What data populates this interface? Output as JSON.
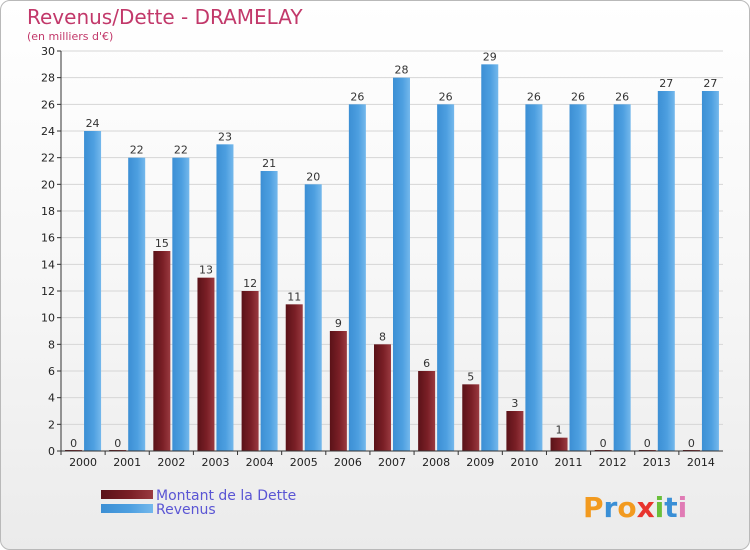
{
  "title": "Revenus/Dette - DRAMELAY",
  "subtitle": "(en milliers d'€)",
  "logo": {
    "letters": [
      "P",
      "r",
      "o",
      "x",
      "i",
      "t",
      "i"
    ],
    "colors": [
      "#f29a1f",
      "#3a8fd6",
      "#f29a1f",
      "#e8342e",
      "#6abf3a",
      "#3a8fd6",
      "#e07bb5"
    ]
  },
  "colors": {
    "dette": "#7a1f26",
    "revenus": "#4d9fe0",
    "grid": "#d6d6d6",
    "axis": "#333333"
  },
  "chart_data": {
    "type": "bar",
    "categories": [
      "2000",
      "2001",
      "2002",
      "2003",
      "2004",
      "2005",
      "2006",
      "2007",
      "2008",
      "2009",
      "2010",
      "2011",
      "2012",
      "2013",
      "2014"
    ],
    "series": [
      {
        "name": "Montant de la Dette",
        "values": [
          0,
          0,
          15,
          13,
          12,
          11,
          9,
          8,
          6,
          5,
          3,
          1,
          0,
          0,
          0
        ]
      },
      {
        "name": "Revenus",
        "values": [
          24,
          22,
          22,
          23,
          21,
          20,
          26,
          28,
          26,
          29,
          26,
          26,
          26,
          27,
          27
        ]
      }
    ],
    "yticks": [
      0,
      2,
      4,
      6,
      8,
      10,
      12,
      14,
      16,
      18,
      20,
      22,
      24,
      26,
      28,
      30
    ],
    "ylim": [
      0,
      30
    ],
    "grid": true,
    "legend": "bottom-left"
  }
}
